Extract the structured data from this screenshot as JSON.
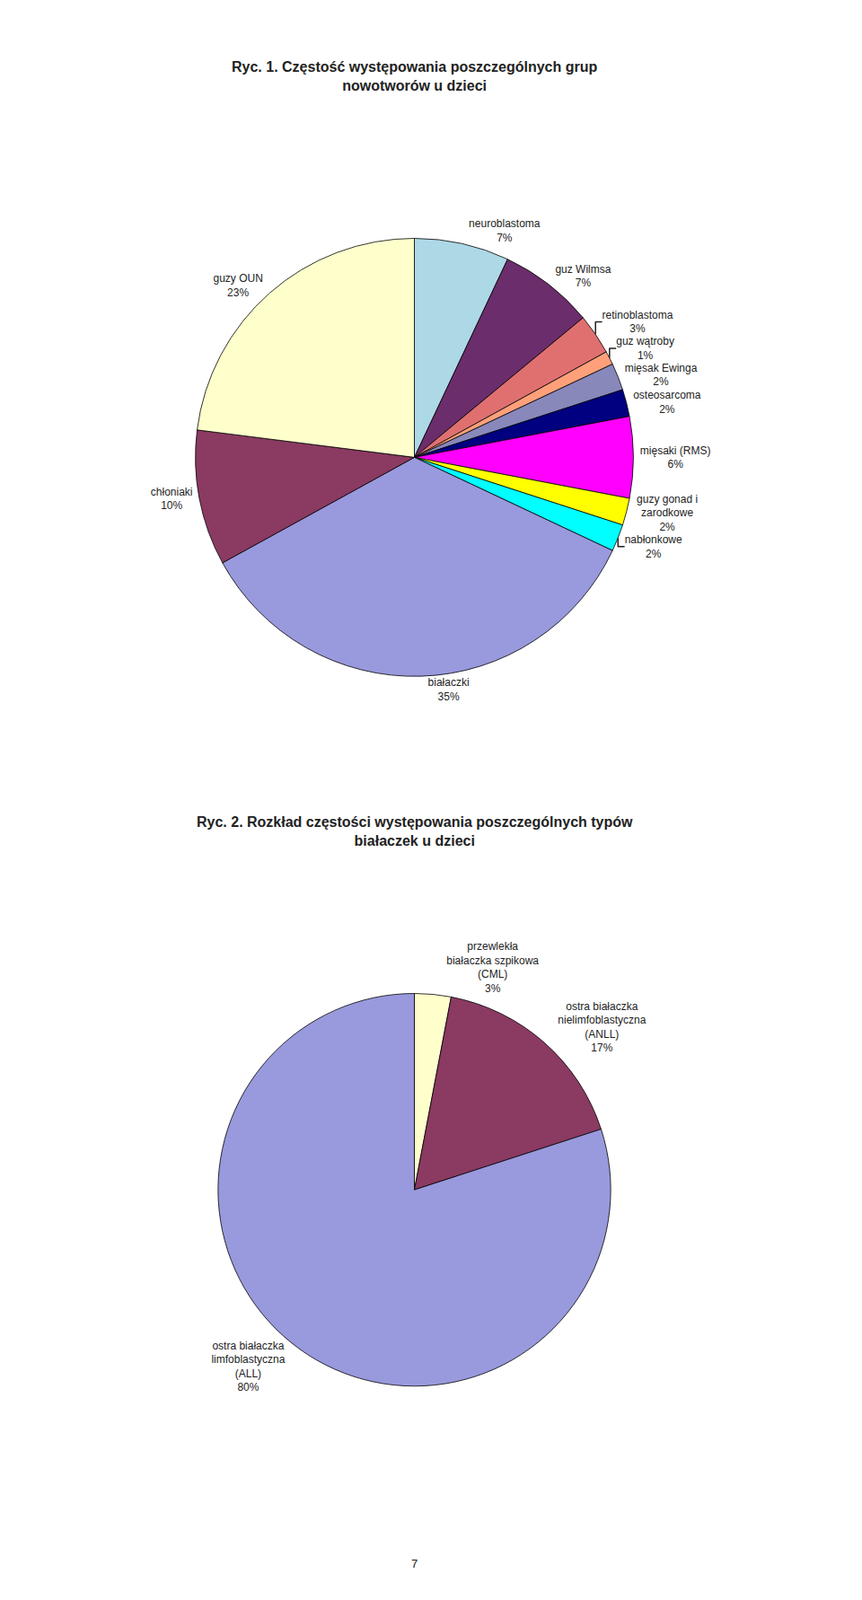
{
  "chart_data": [
    {
      "type": "pie",
      "title": "Ryc. 1. Częstość występowania poszczególnych grup\nnowotworów u dzieci",
      "categories": [
        "neuroblastoma",
        "guz Wilmsa",
        "retinoblastoma",
        "guz wątroby",
        "mięsak Ewinga",
        "osteosarcoma",
        "mięsaki (RMS)",
        "guzy gonad i\nzarodkowe",
        "nabłonkowe",
        "białaczki",
        "chłoniaki",
        "guzy OUN"
      ],
      "values": [
        7,
        7,
        3,
        1,
        2,
        2,
        6,
        2,
        2,
        35,
        10,
        23
      ],
      "value_labels": [
        "7%",
        "7%",
        "3%",
        "1%",
        "2%",
        "2%",
        "6%",
        "2%",
        "2%",
        "35%",
        "10%",
        "23%"
      ],
      "colors": [
        "#add8e6",
        "#6b2d6b",
        "#e07070",
        "#ffa07a",
        "#8888bb",
        "#000080",
        "#ff00ff",
        "#ffff00",
        "#00ffff",
        "#9999dd",
        "#8b3a62",
        "#ffffcc"
      ],
      "data_labels": true
    },
    {
      "type": "pie",
      "title": "Ryc. 2. Rozkład częstości występowania poszczególnych typów\nbiałaczek u dzieci",
      "categories": [
        "przewlekła\nbiałaczka szpikowa\n(CML)",
        "ostra białaczka\nnielimfoblastyczna\n(ANLL)",
        "ostra białaczka\nlimfoblastyczna\n(ALL)"
      ],
      "values": [
        3,
        17,
        80
      ],
      "value_labels": [
        "3%",
        "17%",
        "80%"
      ],
      "colors": [
        "#ffffcc",
        "#8b3a62",
        "#9999dd"
      ],
      "data_labels": true,
      "annotations": [
        "7"
      ]
    }
  ]
}
